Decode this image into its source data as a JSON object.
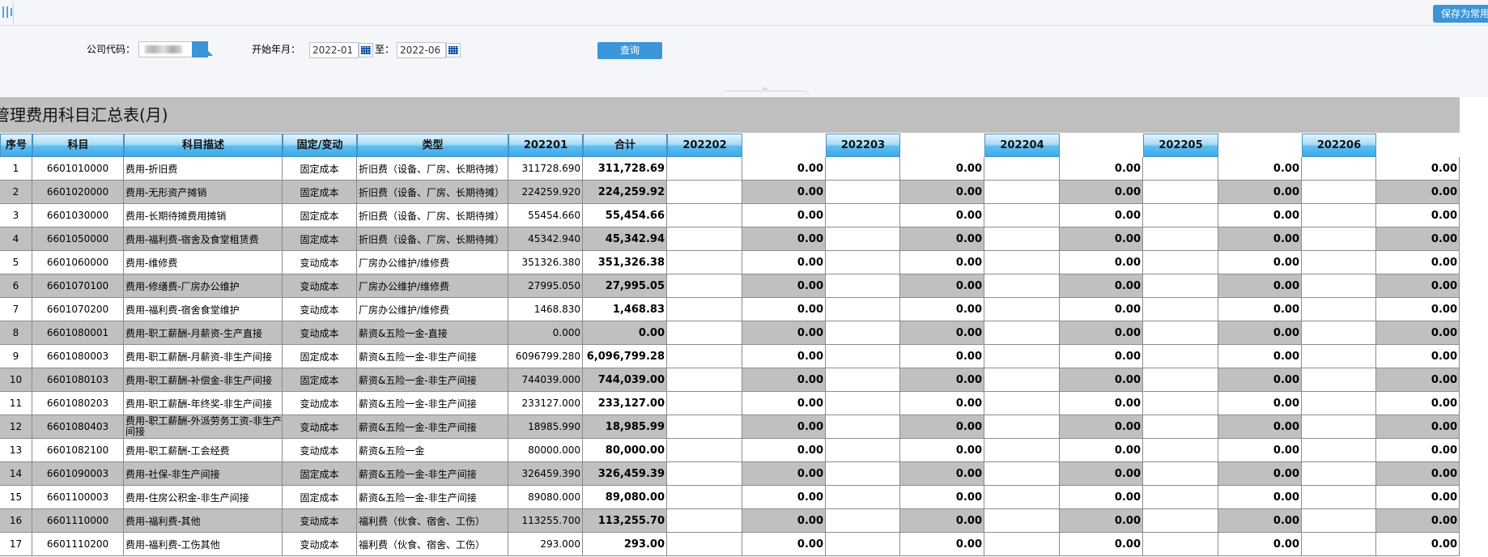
{
  "toolbar": {
    "save_label": "保存为常用"
  },
  "filters": {
    "company_label": "公司代码：",
    "start_label": "开始年月：",
    "start_value": "2022-01",
    "to_label": "至：",
    "end_value": "2022-06",
    "query_label": "查询"
  },
  "report": {
    "title": "管理费用科目汇总表(月)"
  },
  "columns": {
    "seq": "序号",
    "account": "科目",
    "desc": "科目描述",
    "fixed": "固定/变动",
    "type": "类型",
    "m1": "202201",
    "total": "合计",
    "m2": "202202",
    "m3": "202203",
    "m4": "202204",
    "m5": "202205",
    "m6": "202206"
  },
  "rows": [
    {
      "seq": "1",
      "account": "6601010000",
      "desc": "费用-折旧费",
      "fixed": "固定成本",
      "type": "折旧费（设备、厂房、长期待摊）",
      "m1": "311728.690",
      "total": "311,728.69"
    },
    {
      "seq": "2",
      "account": "6601020000",
      "desc": "费用-无形资产摊销",
      "fixed": "固定成本",
      "type": "折旧费（设备、厂房、长期待摊）",
      "m1": "224259.920",
      "total": "224,259.92"
    },
    {
      "seq": "3",
      "account": "6601030000",
      "desc": "费用-长期待摊费用摊销",
      "fixed": "固定成本",
      "type": "折旧费（设备、厂房、长期待摊）",
      "m1": "55454.660",
      "total": "55,454.66"
    },
    {
      "seq": "4",
      "account": "6601050000",
      "desc": "费用-福利费-宿舍及食堂租赁费",
      "fixed": "固定成本",
      "type": "折旧费（设备、厂房、长期待摊）",
      "m1": "45342.940",
      "total": "45,342.94"
    },
    {
      "seq": "5",
      "account": "6601060000",
      "desc": "费用-维修费",
      "fixed": "变动成本",
      "type": "厂房办公维护/维修费",
      "m1": "351326.380",
      "total": "351,326.38"
    },
    {
      "seq": "6",
      "account": "6601070100",
      "desc": "费用-修缮费-厂房办公维护",
      "fixed": "变动成本",
      "type": "厂房办公维护/维修费",
      "m1": "27995.050",
      "total": "27,995.05"
    },
    {
      "seq": "7",
      "account": "6601070200",
      "desc": "费用-福利费-宿舍食堂维护",
      "fixed": "变动成本",
      "type": "厂房办公维护/维修费",
      "m1": "1468.830",
      "total": "1,468.83"
    },
    {
      "seq": "8",
      "account": "6601080001",
      "desc": "费用-职工薪酬-月薪资-生产直接",
      "fixed": "变动成本",
      "type": "薪资&五险一金-直接",
      "m1": "0.000",
      "total": "0.00"
    },
    {
      "seq": "9",
      "account": "6601080003",
      "desc": "费用-职工薪酬-月薪资-非生产间接",
      "fixed": "固定成本",
      "type": "薪资&五险一金-非生产间接",
      "m1": "6096799.280",
      "total": "6,096,799.28"
    },
    {
      "seq": "10",
      "account": "6601080103",
      "desc": "费用-职工薪酬-补偿金-非生产间接",
      "fixed": "固定成本",
      "type": "薪资&五险一金-非生产间接",
      "m1": "744039.000",
      "total": "744,039.00"
    },
    {
      "seq": "11",
      "account": "6601080203",
      "desc": "费用-职工薪酬-年终奖-非生产间接",
      "fixed": "变动成本",
      "type": "薪资&五险一金-非生产间接",
      "m1": "233127.000",
      "total": "233,127.00"
    },
    {
      "seq": "12",
      "account": "6601080403",
      "desc": "费用-职工薪酬-外派劳务工资-非生产间接",
      "fixed": "变动成本",
      "type": "薪资&五险一金-非生产间接",
      "m1": "18985.990",
      "total": "18,985.99"
    },
    {
      "seq": "13",
      "account": "6601082100",
      "desc": "费用-职工薪酬-工会经费",
      "fixed": "变动成本",
      "type": "薪资&五险一金",
      "m1": "80000.000",
      "total": "80,000.00"
    },
    {
      "seq": "14",
      "account": "6601090003",
      "desc": "费用-社保-非生产间接",
      "fixed": "固定成本",
      "type": "薪资&五险一金-非生产间接",
      "m1": "326459.390",
      "total": "326,459.39"
    },
    {
      "seq": "15",
      "account": "6601100003",
      "desc": "费用-住房公积金-非生产间接",
      "fixed": "固定成本",
      "type": "薪资&五险一金-非生产间接",
      "m1": "89080.000",
      "total": "89,080.00"
    },
    {
      "seq": "16",
      "account": "6601110000",
      "desc": "费用-福利费-其他",
      "fixed": "变动成本",
      "type": "福利费（伙食、宿舍、工伤）",
      "m1": "113255.700",
      "total": "113,255.70"
    },
    {
      "seq": "17",
      "account": "6601110200",
      "desc": "费用-福利费-工伤其他",
      "fixed": "变动成本",
      "type": "福利费（伙食、宿舍、工伤）",
      "m1": "293.000",
      "total": "293.00"
    }
  ],
  "zero_value": "0.00"
}
